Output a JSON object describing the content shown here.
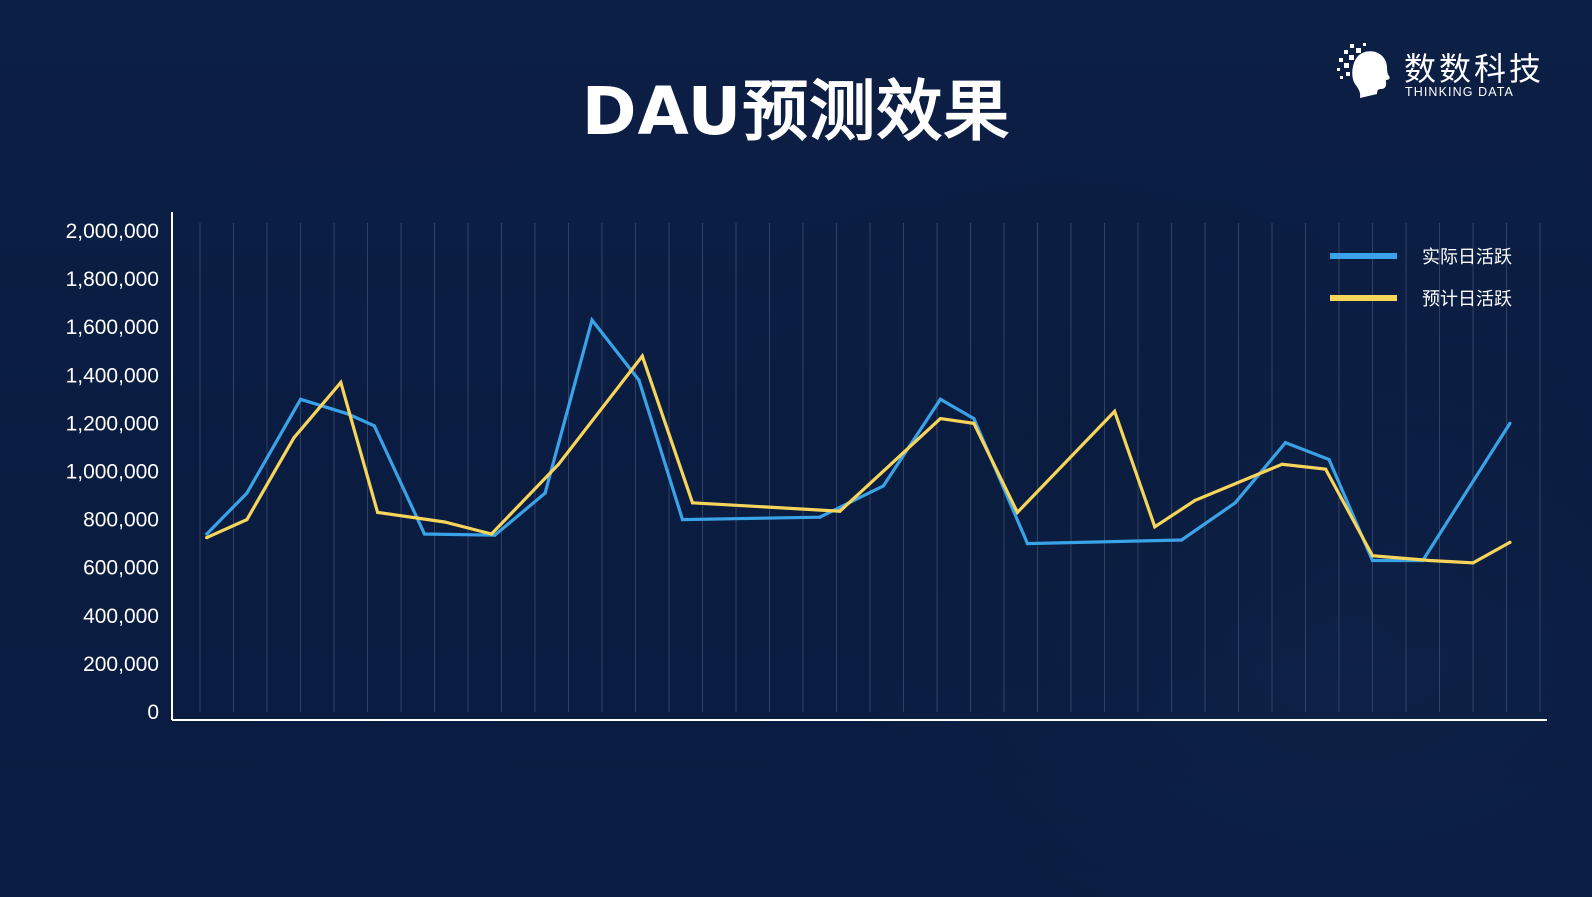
{
  "header": {
    "title": "DAU预测效果"
  },
  "logo": {
    "name_cn": "数数科技",
    "name_en": "THINKING DATA"
  },
  "colors": {
    "background": "#0b1d42",
    "actual": "#3aa2e6",
    "predicted": "#f7d45a",
    "grid": "#51607f",
    "axis": "#ffffff"
  },
  "chart_data": {
    "type": "line",
    "title": "DAU预测效果",
    "xlabel": "",
    "ylabel": "",
    "ylim": [
      0,
      2000000
    ],
    "yticks": [
      0,
      200000,
      400000,
      600000,
      800000,
      1000000,
      1200000,
      1400000,
      1600000,
      1800000,
      2000000
    ],
    "ytick_labels": [
      "0",
      "200,000",
      "400,000",
      "600,000",
      "800,000",
      "1,000,000",
      "1,200,000",
      "1,400,000",
      "1,600,000",
      "1,800,000",
      "2,000,000"
    ],
    "x_count": 40,
    "grid": "vertical",
    "legend": "top-right",
    "series": [
      {
        "name": "实际日活跃",
        "color": "#3aa2e6",
        "points": [
          [
            0.5,
            740000
          ],
          [
            1.7,
            910000
          ],
          [
            3.3,
            1300000
          ],
          [
            4.7,
            1240000
          ],
          [
            5.5,
            1190000
          ],
          [
            7.0,
            740000
          ],
          [
            9.1,
            735000
          ],
          [
            10.6,
            910000
          ],
          [
            12.0,
            1630000
          ],
          [
            13.4,
            1380000
          ],
          [
            14.7,
            800000
          ],
          [
            18.8,
            810000
          ],
          [
            20.7,
            940000
          ],
          [
            22.4,
            1300000
          ],
          [
            23.4,
            1220000
          ],
          [
            25.0,
            700000
          ],
          [
            29.6,
            715000
          ],
          [
            31.2,
            870000
          ],
          [
            32.7,
            1120000
          ],
          [
            34.0,
            1050000
          ],
          [
            35.3,
            630000
          ],
          [
            36.8,
            630000
          ],
          [
            39.4,
            1200000
          ]
        ]
      },
      {
        "name": "预计日活跃",
        "color": "#f7d45a",
        "points": [
          [
            0.5,
            725000
          ],
          [
            1.7,
            800000
          ],
          [
            3.1,
            1140000
          ],
          [
            4.5,
            1370000
          ],
          [
            5.6,
            830000
          ],
          [
            7.6,
            790000
          ],
          [
            9.0,
            740000
          ],
          [
            11.0,
            1030000
          ],
          [
            13.5,
            1480000
          ],
          [
            15.0,
            870000
          ],
          [
            19.4,
            835000
          ],
          [
            22.4,
            1220000
          ],
          [
            23.4,
            1200000
          ],
          [
            24.7,
            830000
          ],
          [
            27.6,
            1250000
          ],
          [
            28.8,
            770000
          ],
          [
            30.0,
            880000
          ],
          [
            32.6,
            1030000
          ],
          [
            33.9,
            1010000
          ],
          [
            35.3,
            650000
          ],
          [
            37.0,
            630000
          ],
          [
            38.3,
            620000
          ],
          [
            39.4,
            705000
          ]
        ]
      }
    ]
  }
}
